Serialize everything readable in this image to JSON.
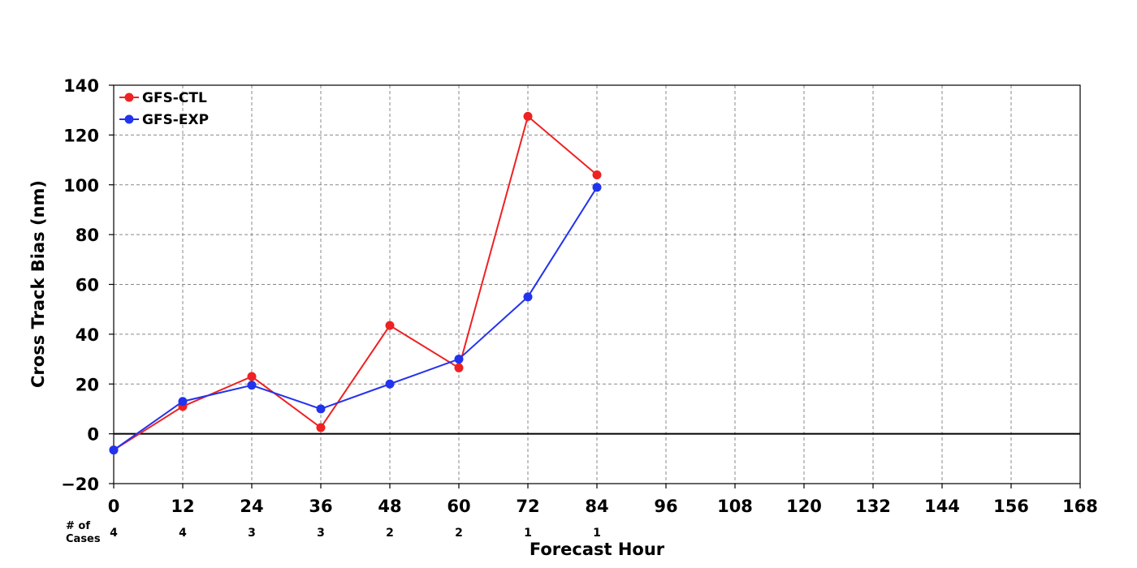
{
  "chart_data": {
    "type": "line",
    "title": "",
    "xlabel": "Forecast Hour",
    "ylabel": "Cross Track Bias (nm)",
    "xlim": [
      0,
      168
    ],
    "ylim": [
      -20,
      140
    ],
    "x_ticks": [
      0,
      12,
      24,
      36,
      48,
      60,
      72,
      84,
      96,
      108,
      120,
      132,
      144,
      156,
      168
    ],
    "y_ticks": [
      -20,
      0,
      20,
      40,
      60,
      80,
      100,
      120,
      140
    ],
    "y_tick_labels": [
      "−20",
      "0",
      "20",
      "40",
      "60",
      "80",
      "100",
      "120",
      "140"
    ],
    "grid": true,
    "zero_line": true,
    "legend_position": "top-left",
    "series": [
      {
        "name": "GFS-CTL",
        "color": "#ee2222",
        "x": [
          0,
          12,
          24,
          36,
          48,
          60,
          72,
          84
        ],
        "values": [
          -6.5,
          11,
          23,
          2.5,
          43.5,
          26.5,
          127.5,
          104
        ]
      },
      {
        "name": "GFS-EXP",
        "color": "#2233ee",
        "x": [
          0,
          12,
          24,
          36,
          48,
          60,
          72,
          84
        ],
        "values": [
          -6.5,
          13,
          19.5,
          10,
          20,
          30,
          55,
          99
        ]
      }
    ],
    "cases": {
      "label_line1": "# of",
      "label_line2": "Cases",
      "x": [
        0,
        12,
        24,
        36,
        48,
        60,
        72,
        84
      ],
      "counts": [
        "4",
        "4",
        "3",
        "3",
        "2",
        "2",
        "1",
        "1"
      ]
    }
  }
}
